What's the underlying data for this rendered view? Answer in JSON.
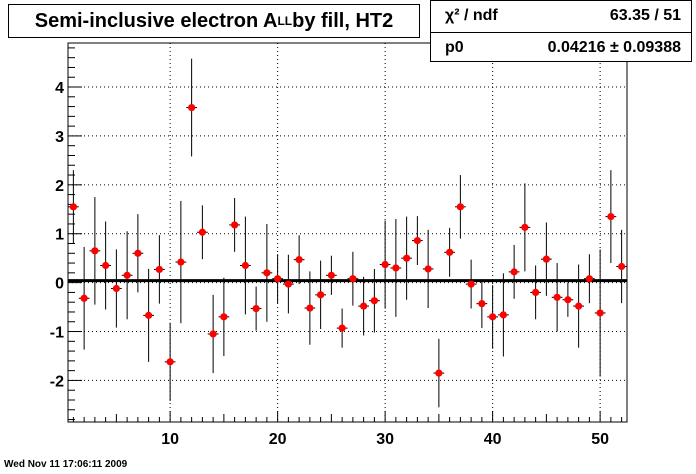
{
  "title": {
    "prefix": "Semi-inclusive electron A",
    "sub": "LL",
    "suffix": " by fill, HT2"
  },
  "stats": {
    "row1_label": "χ² / ndf",
    "row1_value": "63.35 / 51",
    "row2_label": "p0",
    "row2_value": "0.04216 ± 0.09388"
  },
  "timestamp": "Wed Nov 11 17:06:11 2009",
  "chart_data": {
    "type": "scatter",
    "xlim": [
      0.5,
      52.5
    ],
    "ylim": [
      -2.85,
      4.9
    ],
    "x_ticks": [
      10,
      20,
      30,
      40,
      50
    ],
    "y_ticks": [
      -2,
      -1,
      0,
      1,
      2,
      3,
      4
    ],
    "grid": true,
    "fit_line": 0.04216,
    "marker_color": "#ff0000",
    "points": [
      {
        "x": 1,
        "y": 1.55,
        "err": 0.75
      },
      {
        "x": 2,
        "y": -0.32,
        "err": 1.05
      },
      {
        "x": 3,
        "y": 0.65,
        "err": 1.1
      },
      {
        "x": 4,
        "y": 0.35,
        "err": 0.9
      },
      {
        "x": 5,
        "y": -0.12,
        "err": 0.8
      },
      {
        "x": 6,
        "y": 0.15,
        "err": 0.9
      },
      {
        "x": 7,
        "y": 0.6,
        "err": 0.8
      },
      {
        "x": 8,
        "y": -0.67,
        "err": 0.95
      },
      {
        "x": 9,
        "y": 0.27,
        "err": 0.7
      },
      {
        "x": 10,
        "y": -1.62,
        "err": 0.8
      },
      {
        "x": 11,
        "y": 0.42,
        "err": 1.25
      },
      {
        "x": 12,
        "y": 3.58,
        "err": 1.0
      },
      {
        "x": 13,
        "y": 1.03,
        "err": 0.55
      },
      {
        "x": 14,
        "y": -1.05,
        "err": 0.8
      },
      {
        "x": 15,
        "y": -0.7,
        "err": 0.8
      },
      {
        "x": 16,
        "y": 1.18,
        "err": 0.55
      },
      {
        "x": 17,
        "y": 0.35,
        "err": 1.0
      },
      {
        "x": 18,
        "y": -0.53,
        "err": 0.45
      },
      {
        "x": 19,
        "y": 0.2,
        "err": 1.0
      },
      {
        "x": 20,
        "y": 0.08,
        "err": 0.5
      },
      {
        "x": 21,
        "y": -0.03,
        "err": 0.6
      },
      {
        "x": 22,
        "y": 0.47,
        "err": 0.5
      },
      {
        "x": 23,
        "y": -0.52,
        "err": 0.75
      },
      {
        "x": 24,
        "y": -0.25,
        "err": 0.7
      },
      {
        "x": 25,
        "y": 0.15,
        "err": 0.4
      },
      {
        "x": 26,
        "y": -0.93,
        "err": 0.4
      },
      {
        "x": 27,
        "y": 0.08,
        "err": 0.55
      },
      {
        "x": 28,
        "y": -0.48,
        "err": 0.6
      },
      {
        "x": 29,
        "y": -0.37,
        "err": 0.65
      },
      {
        "x": 30,
        "y": 0.37,
        "err": 0.9
      },
      {
        "x": 31,
        "y": 0.3,
        "err": 1.0
      },
      {
        "x": 32,
        "y": 0.5,
        "err": 0.85
      },
      {
        "x": 33,
        "y": 0.86,
        "err": 0.5
      },
      {
        "x": 34,
        "y": 0.28,
        "err": 0.8
      },
      {
        "x": 35,
        "y": -1.85,
        "err": 0.7
      },
      {
        "x": 36,
        "y": 0.62,
        "err": 0.5
      },
      {
        "x": 37,
        "y": 1.55,
        "err": 0.65
      },
      {
        "x": 38,
        "y": -0.03,
        "err": 0.5
      },
      {
        "x": 39,
        "y": -0.43,
        "err": 0.5
      },
      {
        "x": 40,
        "y": -0.7,
        "err": 0.65
      },
      {
        "x": 41,
        "y": -0.66,
        "err": 0.85
      },
      {
        "x": 42,
        "y": 0.22,
        "err": 0.55
      },
      {
        "x": 43,
        "y": 1.13,
        "err": 0.9
      },
      {
        "x": 44,
        "y": -0.2,
        "err": 0.55
      },
      {
        "x": 45,
        "y": 0.48,
        "err": 0.75
      },
      {
        "x": 46,
        "y": -0.3,
        "err": 0.7
      },
      {
        "x": 47,
        "y": -0.35,
        "err": 0.35
      },
      {
        "x": 48,
        "y": -0.48,
        "err": 0.85
      },
      {
        "x": 49,
        "y": 0.08,
        "err": 0.5
      },
      {
        "x": 50,
        "y": -0.62,
        "err": 1.3
      },
      {
        "x": 51,
        "y": 1.35,
        "err": 0.95
      },
      {
        "x": 52,
        "y": 0.33,
        "err": 0.75
      }
    ]
  }
}
